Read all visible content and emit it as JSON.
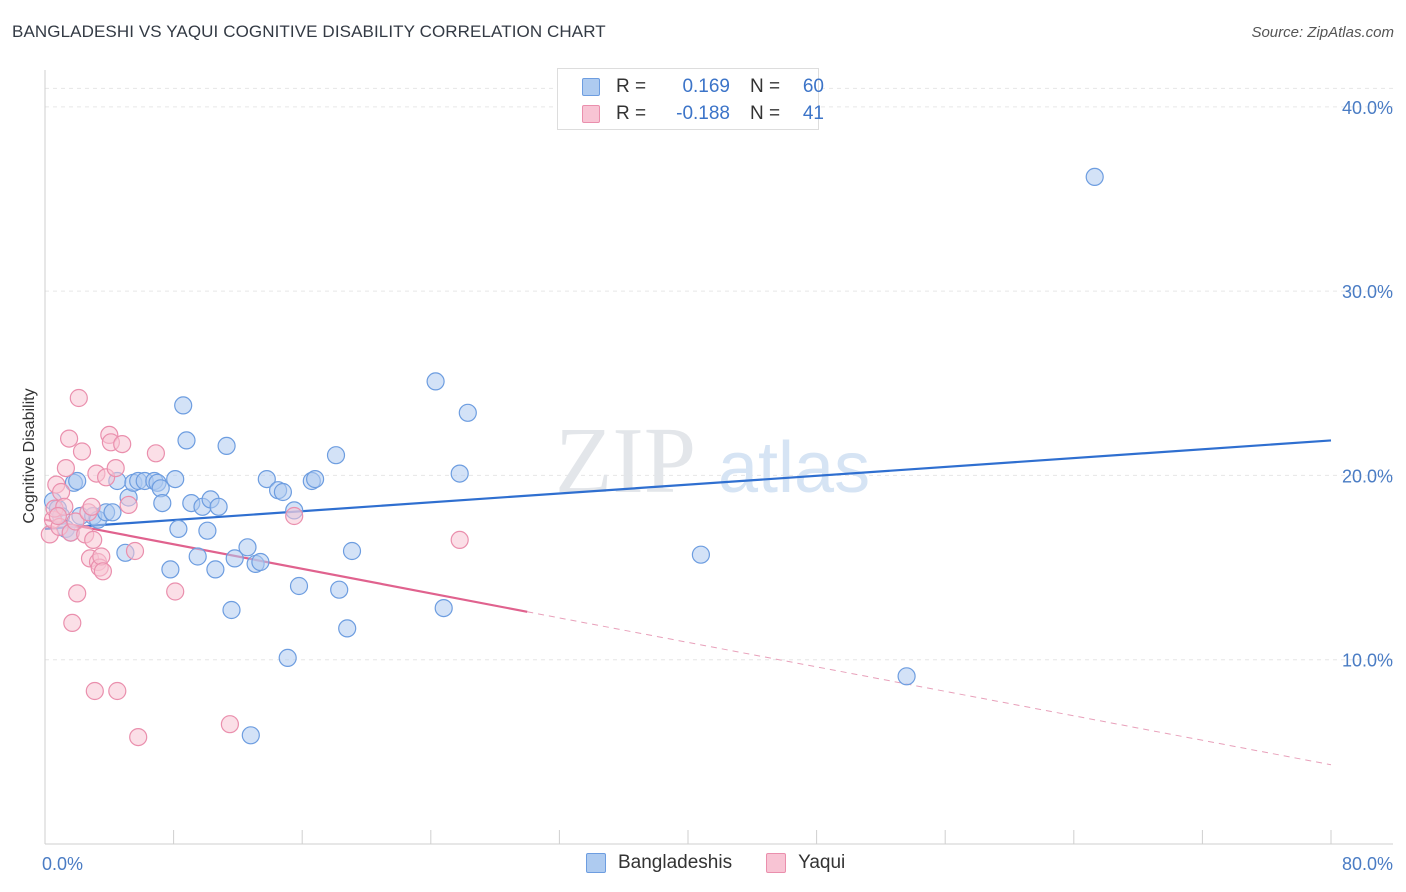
{
  "title": "BANGLADESHI VS YAQUI COGNITIVE DISABILITY CORRELATION CHART",
  "source": "Source: ZipAtlas.com",
  "watermark": {
    "zip": "ZIP",
    "atlas": "atlas"
  },
  "legend": {
    "r_label": "R =",
    "n_label": "N =",
    "rows": [
      {
        "name": "Bangladeshis",
        "r": "0.169",
        "n": "60",
        "fill": "#aecbf0",
        "stroke": "#6d9de0"
      },
      {
        "name": "Yaqui",
        "r": "-0.188",
        "n": "41",
        "fill": "#f8c4d4",
        "stroke": "#ea8fad"
      }
    ]
  },
  "chart_data": {
    "type": "scatter",
    "title": "BANGLADESHI VS YAQUI COGNITIVE DISABILITY CORRELATION CHART",
    "xlabel": "",
    "ylabel": "Cognitive Disability",
    "xlim": [
      0,
      80
    ],
    "ylim": [
      0,
      42
    ],
    "x_tick_labels": [
      "0.0%",
      "80.0%"
    ],
    "y_ticks": [
      10,
      20,
      30,
      40
    ],
    "y_tick_labels": [
      "10.0%",
      "20.0%",
      "30.0%",
      "40.0%"
    ],
    "grid": true,
    "legend_position": "top-center",
    "series": [
      {
        "name": "Bangladeshis",
        "color": "#6d9de0",
        "fill": "#aecbf0",
        "trend": {
          "x": [
            0,
            80
          ],
          "y": [
            17.1,
            21.9
          ],
          "extended": false
        },
        "points": [
          [
            0.5,
            18.6
          ],
          [
            0.8,
            18.2
          ],
          [
            1.0,
            17.8
          ],
          [
            1.3,
            17.1
          ],
          [
            1.8,
            19.6
          ],
          [
            2.0,
            19.7
          ],
          [
            2.2,
            17.8
          ],
          [
            3.0,
            17.8
          ],
          [
            3.3,
            17.6
          ],
          [
            3.8,
            18.0
          ],
          [
            4.2,
            18.0
          ],
          [
            4.5,
            19.7
          ],
          [
            5.0,
            15.8
          ],
          [
            5.2,
            18.8
          ],
          [
            5.5,
            19.6
          ],
          [
            5.8,
            19.7
          ],
          [
            6.2,
            19.7
          ],
          [
            6.8,
            19.7
          ],
          [
            7.0,
            19.6
          ],
          [
            7.2,
            19.3
          ],
          [
            7.3,
            18.5
          ],
          [
            7.8,
            14.9
          ],
          [
            8.1,
            19.8
          ],
          [
            8.3,
            17.1
          ],
          [
            8.6,
            23.8
          ],
          [
            8.8,
            21.9
          ],
          [
            9.1,
            18.5
          ],
          [
            9.5,
            15.6
          ],
          [
            9.8,
            18.3
          ],
          [
            10.1,
            17.0
          ],
          [
            10.3,
            18.7
          ],
          [
            10.6,
            14.9
          ],
          [
            10.8,
            18.3
          ],
          [
            11.3,
            21.6
          ],
          [
            11.6,
            12.7
          ],
          [
            11.8,
            15.5
          ],
          [
            12.6,
            16.1
          ],
          [
            12.8,
            5.9
          ],
          [
            13.1,
            15.2
          ],
          [
            13.4,
            15.3
          ],
          [
            13.8,
            19.8
          ],
          [
            14.5,
            19.2
          ],
          [
            14.8,
            19.1
          ],
          [
            15.1,
            10.1
          ],
          [
            15.5,
            18.1
          ],
          [
            15.8,
            14.0
          ],
          [
            16.6,
            19.7
          ],
          [
            16.8,
            19.8
          ],
          [
            18.1,
            21.1
          ],
          [
            18.3,
            13.8
          ],
          [
            18.8,
            11.7
          ],
          [
            19.1,
            15.9
          ],
          [
            24.3,
            25.1
          ],
          [
            24.8,
            12.8
          ],
          [
            25.8,
            20.1
          ],
          [
            26.3,
            23.4
          ],
          [
            40.8,
            15.7
          ],
          [
            53.6,
            9.1
          ],
          [
            65.3,
            36.2
          ],
          [
            1.6,
            16.9
          ]
        ]
      },
      {
        "name": "Yaqui",
        "color": "#ea8fad",
        "fill": "#f8c4d4",
        "trend": {
          "x": [
            0,
            30
          ],
          "y": [
            17.6,
            12.6
          ],
          "extended_to": [
            80,
            4.3
          ]
        },
        "points": [
          [
            0.3,
            16.8
          ],
          [
            0.5,
            17.6
          ],
          [
            0.6,
            18.2
          ],
          [
            0.7,
            19.5
          ],
          [
            0.9,
            17.2
          ],
          [
            1.0,
            19.1
          ],
          [
            1.2,
            18.3
          ],
          [
            1.3,
            20.4
          ],
          [
            1.5,
            22.0
          ],
          [
            1.6,
            16.9
          ],
          [
            1.7,
            12.0
          ],
          [
            1.9,
            17.5
          ],
          [
            2.0,
            13.6
          ],
          [
            2.1,
            24.2
          ],
          [
            2.3,
            21.3
          ],
          [
            2.5,
            16.8
          ],
          [
            2.7,
            18.0
          ],
          [
            2.8,
            15.5
          ],
          [
            2.9,
            18.3
          ],
          [
            3.0,
            16.5
          ],
          [
            3.1,
            8.3
          ],
          [
            3.2,
            20.1
          ],
          [
            3.3,
            15.3
          ],
          [
            3.4,
            15.0
          ],
          [
            3.5,
            15.6
          ],
          [
            3.6,
            14.8
          ],
          [
            3.8,
            19.9
          ],
          [
            4.0,
            22.2
          ],
          [
            4.1,
            21.8
          ],
          [
            4.4,
            20.4
          ],
          [
            4.5,
            8.3
          ],
          [
            4.8,
            21.7
          ],
          [
            5.2,
            18.4
          ],
          [
            5.6,
            15.9
          ],
          [
            5.8,
            5.8
          ],
          [
            6.9,
            21.2
          ],
          [
            8.1,
            13.7
          ],
          [
            11.5,
            6.5
          ],
          [
            15.5,
            17.8
          ],
          [
            25.8,
            16.5
          ],
          [
            0.8,
            17.8
          ]
        ]
      }
    ]
  }
}
